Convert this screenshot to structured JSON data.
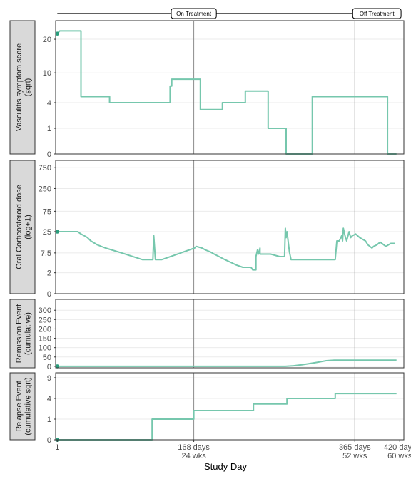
{
  "colors": {
    "line": "#76c7ad",
    "point": "#2a9d7c",
    "strip_fill": "#d9d9d9",
    "grid": "#ebebeb",
    "vline": "#8c8c8c",
    "axis_text": "#4d4d4d"
  },
  "timeline": {
    "labels": [
      {
        "text": "On Treatment",
        "x": 168
      },
      {
        "text": "Off Treatment",
        "x": 392
      }
    ]
  },
  "x_axis": {
    "title": "Study Day",
    "ticks": [
      {
        "value": 1,
        "line1": "1",
        "line2": ""
      },
      {
        "value": 168,
        "line1": "168 days",
        "line2": "24 wks"
      },
      {
        "value": 365,
        "line1": "365 days",
        "line2": "52 wks"
      },
      {
        "value": 420,
        "line1": "420 days",
        "line2": "60 wks"
      }
    ],
    "vlines": [
      168,
      365
    ]
  },
  "chart_data": [
    {
      "type": "line",
      "strip_label_line1": "Vasculitis symptom score",
      "strip_label_line2": "(sqrt)",
      "scale": "sqrt",
      "ylim": [
        0,
        27
      ],
      "yticks": [
        0,
        1,
        4,
        10,
        20
      ],
      "xlim": [
        -1,
        425
      ],
      "x": [
        1,
        4,
        30,
        30,
        65,
        65,
        139,
        139,
        141,
        141,
        176,
        176,
        203,
        203,
        231,
        231,
        259,
        259,
        281,
        281,
        313,
        313,
        405,
        405,
        416
      ],
      "values": [
        22,
        23,
        23,
        5,
        5,
        4,
        4,
        7,
        7,
        8.5,
        8.5,
        3,
        3,
        4,
        4,
        6,
        6,
        1,
        1,
        0,
        0,
        5,
        5,
        0,
        0
      ],
      "start_point": {
        "x": 1,
        "y": 22
      }
    },
    {
      "type": "line",
      "strip_label_line1": "Oral Corticosteroid dose",
      "strip_label_line2": "(log+1)",
      "scale": "log1p",
      "ylim": [
        0,
        1100
      ],
      "yticks": [
        0,
        2,
        7.5,
        25,
        75,
        250,
        750
      ],
      "xlim": [
        -1,
        425
      ],
      "x": [
        1,
        26,
        30,
        34,
        38,
        42,
        50,
        60,
        80,
        105,
        114,
        118,
        119,
        121,
        126,
        129,
        169,
        171,
        178,
        182,
        188,
        193,
        199,
        206,
        215,
        220,
        228,
        232,
        238,
        240,
        244,
        244,
        246,
        247,
        249,
        249,
        252,
        254,
        257,
        262,
        273,
        279,
        280,
        281,
        282,
        285,
        287,
        341,
        343,
        346,
        349,
        350,
        351,
        353,
        355,
        358,
        360,
        362,
        366,
        371,
        378,
        381,
        386,
        388,
        392,
        396,
        403,
        409,
        414
      ],
      "values": [
        25,
        25,
        22,
        20,
        18,
        15,
        12,
        10,
        7.5,
        5,
        5,
        5,
        20,
        5,
        5,
        5,
        10,
        11,
        10,
        9,
        8,
        7,
        6,
        5,
        4,
        3.5,
        3,
        3,
        3,
        2.5,
        2.5,
        6,
        9,
        7,
        10,
        7,
        7,
        7,
        7,
        7,
        6,
        6,
        30,
        18,
        25,
        8,
        5,
        5,
        15,
        15,
        20,
        15,
        30,
        20,
        15,
        25,
        18,
        20,
        22,
        18,
        15,
        12,
        10,
        11,
        12,
        14,
        11,
        13,
        13
      ],
      "start_point": {
        "x": 1,
        "y": 25
      }
    },
    {
      "type": "line",
      "strip_label_line1": "Remission Event",
      "strip_label_line2": "(cumulative)",
      "scale": "linear",
      "ylim": [
        -8,
        358
      ],
      "yticks": [
        0,
        50,
        100,
        150,
        200,
        250,
        300
      ],
      "xlim": [
        -1,
        425
      ],
      "x": [
        1,
        240,
        280,
        290,
        300,
        310,
        320,
        330,
        340,
        350,
        360,
        380,
        400,
        416
      ],
      "values": [
        0,
        0,
        0,
        3,
        8,
        15,
        22,
        30,
        33,
        33,
        33,
        33,
        33,
        33
      ],
      "start_point": {
        "x": 1,
        "y": 0
      }
    },
    {
      "type": "line",
      "strip_label_line1": "Relapse Event",
      "strip_label_line2": "(cumulative sqrt)",
      "scale": "sqrt",
      "ylim": [
        0,
        10.5
      ],
      "yticks": [
        0,
        1,
        4,
        9
      ],
      "xlim": [
        -1,
        425
      ],
      "x": [
        1,
        117,
        117,
        168,
        168,
        241,
        241,
        282,
        282,
        341,
        341,
        416
      ],
      "values": [
        0,
        0,
        1,
        1,
        2,
        2,
        3,
        3,
        4,
        4,
        5,
        5
      ],
      "start_point": {
        "x": 1,
        "y": 0
      }
    }
  ]
}
